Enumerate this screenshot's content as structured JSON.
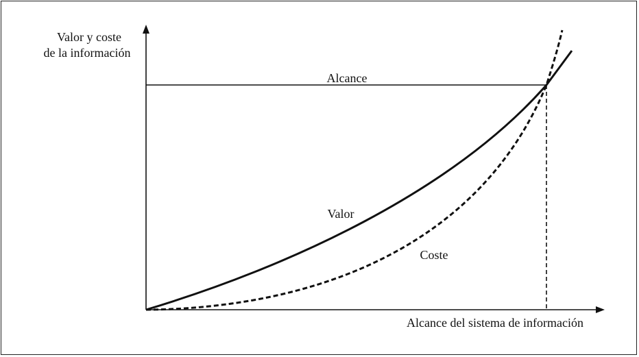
{
  "diagram": {
    "y_axis_label_line1": "Valor y coste",
    "y_axis_label_line2": "de la información",
    "x_axis_label": "Alcance del sistema de información",
    "scope_line_label": "Alcance",
    "value_curve_label": "Valor",
    "cost_curve_label": "Coste",
    "colors": {
      "ink": "#111111",
      "background": "#ffffff"
    }
  }
}
